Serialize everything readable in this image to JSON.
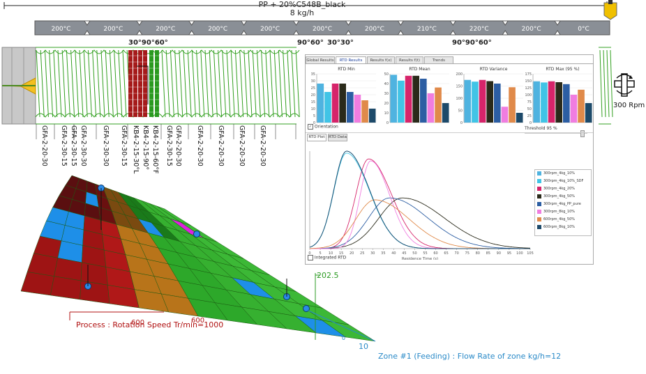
{
  "extruder": {
    "title": "PP + 20%C548B_black",
    "flow": "8 kg/h",
    "barrels": [
      "200°C",
      "200°C",
      "200°C",
      "200°C",
      "200°C",
      "200°C",
      "200°C",
      "210°C",
      "220°C",
      "200°C",
      "0°C"
    ],
    "angle_group_1": "30°90°60°",
    "angle_group_2": "90°60°",
    "angle_group_3": "30°30°",
    "angle_group_4": "90°90°60°",
    "screw_elements": [
      "GFA-2-20-30",
      "GFA-2-30-15",
      "GFA-2-30-15",
      "GFA-2-30-30",
      "GFA-2-30-30",
      "GFA-2-30-15",
      "KB4-2-15-30°L",
      "KB4-2-15-90°",
      "KB4-2-15-60°F",
      "GFA-2-30-15",
      "GFA-2-20-30",
      "GFA-2-20-30",
      "GFA-2-20-30",
      "GFA-2-20-30",
      "GFA-2-20-30"
    ],
    "rpm": "300 Rpm",
    "rotation_icon": "rotation-arrow-icon"
  },
  "rtd_panel": {
    "tabs": [
      "Global Results",
      "RTD Results",
      "Results f(x)",
      "Results f(t)",
      "Trends"
    ],
    "active_tab": "RTD Results",
    "subtabs": [
      "RTD Plot",
      "RTD Data"
    ],
    "active_subtab": "RTD Plot",
    "orientation_label": "Orientation",
    "threshold_label": "Threshold 95 %",
    "integrated_label": "Integrated RTD",
    "xlabel": "Residence Time (s)",
    "bar_charts": [
      {
        "title": "RTD Min",
        "ymax": 35,
        "ticks": [
          "0",
          "5",
          "10",
          "15",
          "20",
          "25",
          "30",
          "35"
        ],
        "values": [
          28,
          22,
          28,
          28,
          22,
          20,
          16,
          10
        ]
      },
      {
        "title": "RTD Mean",
        "ymax": 50,
        "ticks": [
          "0",
          "10",
          "20",
          "30",
          "40",
          "50"
        ],
        "values": [
          49,
          43,
          48,
          48,
          45,
          30,
          36,
          20
        ]
      },
      {
        "title": "RTD Variance",
        "ymax": 200,
        "ticks": [
          "0",
          "50",
          "100",
          "150",
          "200"
        ],
        "values": [
          175,
          168,
          175,
          170,
          160,
          65,
          145,
          40
        ]
      },
      {
        "title": "RTD Max (95 %)",
        "ymax": 175,
        "ticks": [
          "0",
          "25",
          "50",
          "75",
          "100",
          "125",
          "150",
          "175"
        ],
        "values": [
          148,
          144,
          148,
          145,
          138,
          100,
          118,
          70
        ]
      }
    ],
    "legend": [
      "300rpm_4kg_10%",
      "300rpm_4kg_10%_SDF",
      "300rpm_4kg_20%",
      "300rpm_4kg_50%",
      "300rpm_4kg_PP_pure",
      "300rpm_8kg_10%",
      "600rpm_4kg_50%",
      "600rpm_8kg_10%"
    ],
    "colors": [
      "#4fb3e0",
      "#41c4e6",
      "#d6246a",
      "#2a2a1a",
      "#2c5ea3",
      "#f07de0",
      "#e08a4a",
      "#1d4a6a"
    ],
    "x_ticks": [
      "0",
      "5",
      "10",
      "15",
      "20",
      "25",
      "30",
      "35",
      "40",
      "45",
      "50",
      "55",
      "60",
      "65",
      "70",
      "75",
      "80",
      "85",
      "90",
      "95",
      "100",
      "105"
    ],
    "curves": [
      {
        "peak": 17.5,
        "width": 6,
        "height": 1.0
      },
      {
        "peak": 17.5,
        "width": 6,
        "height": 0.98
      },
      {
        "peak": 28,
        "width": 6,
        "height": 0.92
      },
      {
        "peak": 44,
        "width": 11,
        "height": 0.52
      },
      {
        "peak": 38,
        "width": 10,
        "height": 0.52
      },
      {
        "peak": 29,
        "width": 5,
        "height": 0.9
      },
      {
        "peak": 31,
        "width": 9,
        "height": 0.5
      },
      {
        "peak": 17.5,
        "width": 6,
        "height": 1.0
      }
    ]
  },
  "surface": {
    "process_label": "Process : Rotation Speed Tr/min=1000",
    "zone_label": "Zone #1 (Feeding) : Flow Rate of zone kg/h=12",
    "value_top": "202.5",
    "value_10": "10",
    "value_0": "0",
    "tick_600": "600",
    "tick_600b": "600"
  }
}
